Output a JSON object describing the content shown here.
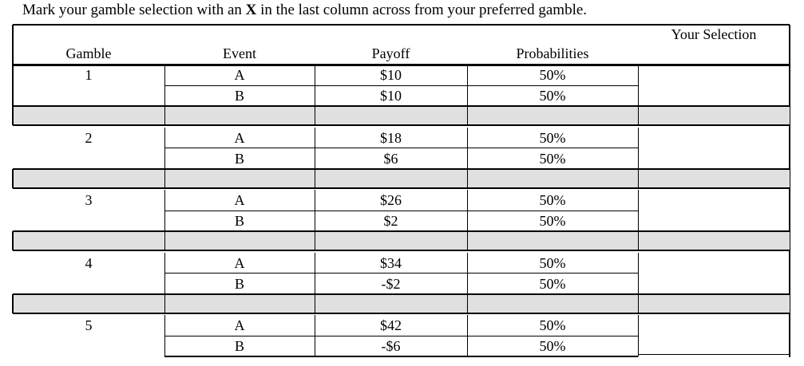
{
  "instruction": {
    "before": "Mark your gamble selection with an ",
    "mark": "X",
    "after": " in the last column across from your preferred gamble."
  },
  "headers": {
    "gamble": "Gamble",
    "event": "Event",
    "payoff": "Payoff",
    "probabilities": "Probabilities",
    "selection": "Your Selection"
  },
  "gambles": [
    {
      "id": "1",
      "rows": [
        {
          "event": "A",
          "payoff": "$10",
          "prob": "50%"
        },
        {
          "event": "B",
          "payoff": "$10",
          "prob": "50%"
        }
      ],
      "selection": ""
    },
    {
      "id": "2",
      "rows": [
        {
          "event": "A",
          "payoff": "$18",
          "prob": "50%"
        },
        {
          "event": "B",
          "payoff": "$6",
          "prob": "50%"
        }
      ],
      "selection": ""
    },
    {
      "id": "3",
      "rows": [
        {
          "event": "A",
          "payoff": "$26",
          "prob": "50%"
        },
        {
          "event": "B",
          "payoff": "$2",
          "prob": "50%"
        }
      ],
      "selection": ""
    },
    {
      "id": "4",
      "rows": [
        {
          "event": "A",
          "payoff": "$34",
          "prob": "50%"
        },
        {
          "event": "B",
          "payoff": "-$2",
          "prob": "50%"
        }
      ],
      "selection": ""
    },
    {
      "id": "5",
      "rows": [
        {
          "event": "A",
          "payoff": "$42",
          "prob": "50%"
        },
        {
          "event": "B",
          "payoff": "-$6",
          "prob": "50%"
        }
      ],
      "selection": ""
    }
  ],
  "colors": {
    "separator": "#e0e0e0",
    "border": "#000000"
  }
}
